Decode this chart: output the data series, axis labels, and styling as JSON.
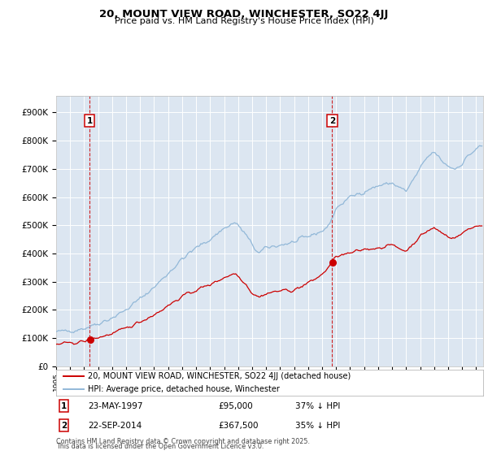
{
  "title1": "20, MOUNT VIEW ROAD, WINCHESTER, SO22 4JJ",
  "title2": "Price paid vs. HM Land Registry's House Price Index (HPI)",
  "legend1": "20, MOUNT VIEW ROAD, WINCHESTER, SO22 4JJ (detached house)",
  "legend2": "HPI: Average price, detached house, Winchester",
  "transaction1_date": "23-MAY-1997",
  "transaction1_price": 95000,
  "transaction1_hpi_text": "37% ↓ HPI",
  "transaction2_date": "22-SEP-2014",
  "transaction2_price": 367500,
  "transaction2_hpi_text": "35% ↓ HPI",
  "transaction1_year": 1997.38,
  "transaction2_year": 2014.72,
  "hpi_color": "#92b8d8",
  "price_color": "#cc0000",
  "plot_bg": "#dce6f1",
  "grid_color": "#ffffff",
  "vline_color": "#cc0000",
  "footnote_line1": "Contains HM Land Registry data © Crown copyright and database right 2025.",
  "footnote_line2": "This data is licensed under the Open Government Licence v3.0.",
  "hpi_key_times": [
    1995.0,
    1996.0,
    1997.0,
    1998.0,
    1999.0,
    2000.0,
    2001.0,
    2002.0,
    2003.0,
    2004.0,
    2005.0,
    2006.0,
    2007.0,
    2007.8,
    2008.5,
    2009.0,
    2009.5,
    2010.0,
    2011.0,
    2012.0,
    2013.0,
    2014.0,
    2014.5,
    2015.0,
    2016.0,
    2017.0,
    2018.0,
    2019.0,
    2020.0,
    2020.5,
    2021.0,
    2021.5,
    2022.0,
    2022.5,
    2023.0,
    2023.5,
    2024.0,
    2024.5,
    2025.3
  ],
  "hpi_key_vals": [
    122000,
    126000,
    135000,
    152000,
    172000,
    200000,
    240000,
    280000,
    330000,
    380000,
    420000,
    450000,
    490000,
    510000,
    470000,
    430000,
    400000,
    420000,
    430000,
    440000,
    460000,
    480000,
    500000,
    560000,
    600000,
    620000,
    640000,
    650000,
    620000,
    660000,
    700000,
    740000,
    760000,
    730000,
    710000,
    700000,
    720000,
    750000,
    780000
  ],
  "pp_key_times": [
    1995.0,
    1996.0,
    1997.0,
    1997.4,
    1998.0,
    1999.0,
    2000.0,
    2001.0,
    2002.0,
    2003.0,
    2004.0,
    2005.0,
    2006.0,
    2007.0,
    2007.8,
    2008.5,
    2009.0,
    2009.5,
    2010.0,
    2011.0,
    2012.0,
    2013.0,
    2013.5,
    2014.0,
    2014.5,
    2014.72,
    2015.0,
    2016.0,
    2017.0,
    2018.0,
    2019.0,
    2020.0,
    2020.5,
    2021.0,
    2021.5,
    2022.0,
    2022.5,
    2023.0,
    2023.5,
    2024.0,
    2024.5,
    2025.3
  ],
  "pp_key_vals": [
    78000,
    82000,
    88000,
    95000,
    102000,
    115000,
    135000,
    158000,
    183000,
    215000,
    248000,
    270000,
    290000,
    315000,
    330000,
    295000,
    260000,
    245000,
    258000,
    268000,
    270000,
    295000,
    310000,
    325000,
    355000,
    367500,
    390000,
    400000,
    415000,
    420000,
    430000,
    408000,
    435000,
    460000,
    480000,
    490000,
    475000,
    460000,
    455000,
    470000,
    490000,
    500000
  ]
}
